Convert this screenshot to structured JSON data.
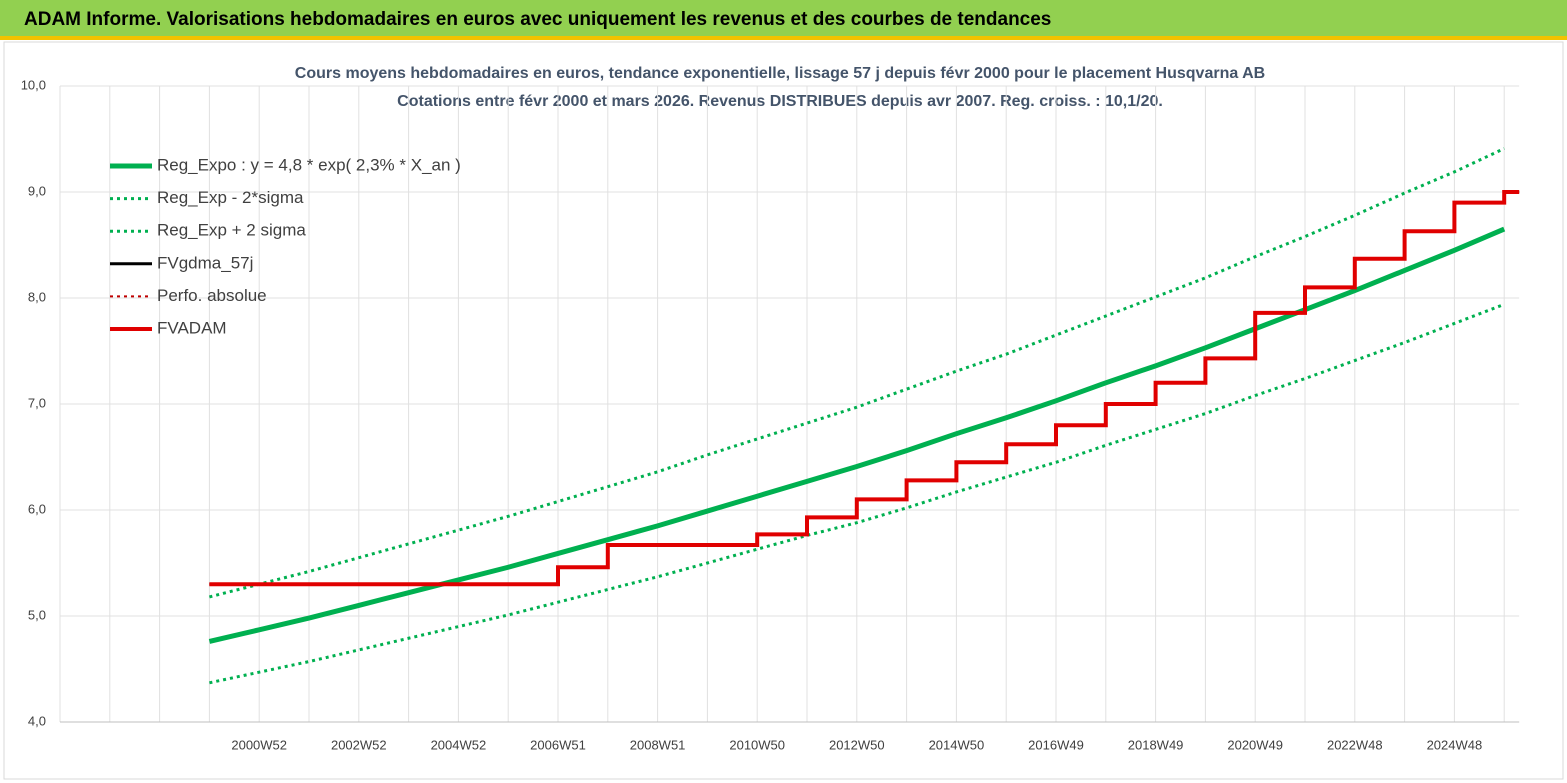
{
  "header": "ADAM Informe. Valorisations hebdomadaires en euros avec uniquement les revenus et des courbes de tendances",
  "chart_data": {
    "type": "line",
    "title": "Cours moyens hebdomadaires en euros, tendance exponentielle, lissage 57 j depuis févr 2000 pour le placement Husqvarna AB",
    "subtitle": "Cotations entre févr 2000 et mars 2026. Revenus DISTRIBUES depuis avr 2007. Reg. croiss. : 10,1/20.",
    "categories": [
      null,
      null,
      null,
      null,
      "2000W52",
      null,
      "2002W52",
      null,
      "2004W52",
      null,
      "2006W51",
      null,
      "2008W51",
      null,
      "2010W50",
      null,
      "2012W50",
      null,
      "2014W50",
      null,
      "2016W49",
      null,
      "2018W49",
      null,
      "2020W49",
      null,
      "2022W48",
      null,
      "2024W48",
      null
    ],
    "ylim": [
      4,
      10
    ],
    "yticks": [
      {
        "value": 4,
        "label": "4,0"
      },
      {
        "value": 5,
        "label": "5,0"
      },
      {
        "value": 6,
        "label": "6,0"
      },
      {
        "value": 7,
        "label": "7,0"
      },
      {
        "value": 8,
        "label": "8,0"
      },
      {
        "value": 9,
        "label": "9,0"
      },
      {
        "value": 10,
        "label": "10,0"
      }
    ],
    "grid": true,
    "legend": "top-left",
    "series": [
      {
        "name": "Reg_Expo : y = 4,8 * exp( 2,3% *  X_an )",
        "color": "#00b050",
        "style": "solid",
        "width": 5,
        "step": false,
        "values": [
          null,
          null,
          null,
          4.76,
          4.87,
          4.98,
          5.1,
          5.22,
          5.34,
          5.46,
          5.59,
          5.72,
          5.85,
          5.99,
          6.13,
          6.27,
          6.41,
          6.56,
          6.72,
          6.87,
          7.03,
          7.2,
          7.36,
          7.53,
          7.71,
          7.89,
          8.07,
          8.26,
          8.45,
          8.65
        ]
      },
      {
        "name": "Reg_Exp - 2*sigma",
        "color": "#00b050",
        "style": "dotted",
        "width": 3,
        "step": false,
        "values": [
          null,
          null,
          null,
          4.37,
          4.47,
          4.57,
          4.68,
          4.79,
          4.9,
          5.01,
          5.13,
          5.25,
          5.37,
          5.5,
          5.63,
          5.76,
          5.88,
          6.02,
          6.17,
          6.31,
          6.45,
          6.61,
          6.76,
          6.91,
          7.08,
          7.24,
          7.41,
          7.58,
          7.76,
          7.94
        ]
      },
      {
        "name": "Reg_Exp + 2 sigma",
        "color": "#00b050",
        "style": "dotted",
        "width": 3,
        "step": false,
        "values": [
          null,
          null,
          null,
          5.18,
          5.3,
          5.42,
          5.55,
          5.68,
          5.81,
          5.94,
          6.08,
          6.22,
          6.36,
          6.52,
          6.67,
          6.82,
          6.97,
          7.14,
          7.31,
          7.47,
          7.65,
          7.83,
          8.01,
          8.19,
          8.39,
          8.58,
          8.78,
          8.99,
          9.19,
          9.41
        ]
      },
      {
        "name": "FVgdma_57j",
        "color": "#000000",
        "style": "solid",
        "width": 3,
        "step": true,
        "values": [
          null,
          null,
          null,
          5.3,
          5.3,
          5.3,
          5.3,
          5.3,
          5.3,
          5.3,
          5.46,
          5.67,
          5.67,
          5.67,
          5.77,
          5.93,
          6.1,
          6.28,
          6.45,
          6.62,
          6.8,
          7.0,
          7.2,
          7.43,
          7.86,
          8.1,
          8.37,
          8.63,
          8.9,
          9.0
        ]
      },
      {
        "name": "Perfo. absolue",
        "color": "#c00000",
        "style": "dotted",
        "width": 2,
        "step": true,
        "values": [
          null,
          null,
          null,
          5.3,
          5.3,
          5.3,
          5.3,
          5.3,
          5.3,
          5.3,
          5.46,
          5.67,
          5.67,
          5.67,
          5.77,
          5.93,
          6.1,
          6.28,
          6.45,
          6.62,
          6.8,
          7.0,
          7.2,
          7.43,
          7.86,
          8.1,
          8.37,
          8.63,
          8.9,
          9.0
        ]
      },
      {
        "name": "FVADAM",
        "color": "#e00000",
        "style": "solid",
        "width": 4,
        "step": true,
        "values": [
          null,
          null,
          null,
          5.3,
          5.3,
          5.3,
          5.3,
          5.3,
          5.3,
          5.3,
          5.46,
          5.67,
          5.67,
          5.67,
          5.77,
          5.93,
          6.1,
          6.28,
          6.45,
          6.62,
          6.8,
          7.0,
          7.2,
          7.43,
          7.86,
          8.1,
          8.37,
          8.63,
          8.9,
          9.0
        ]
      }
    ]
  }
}
